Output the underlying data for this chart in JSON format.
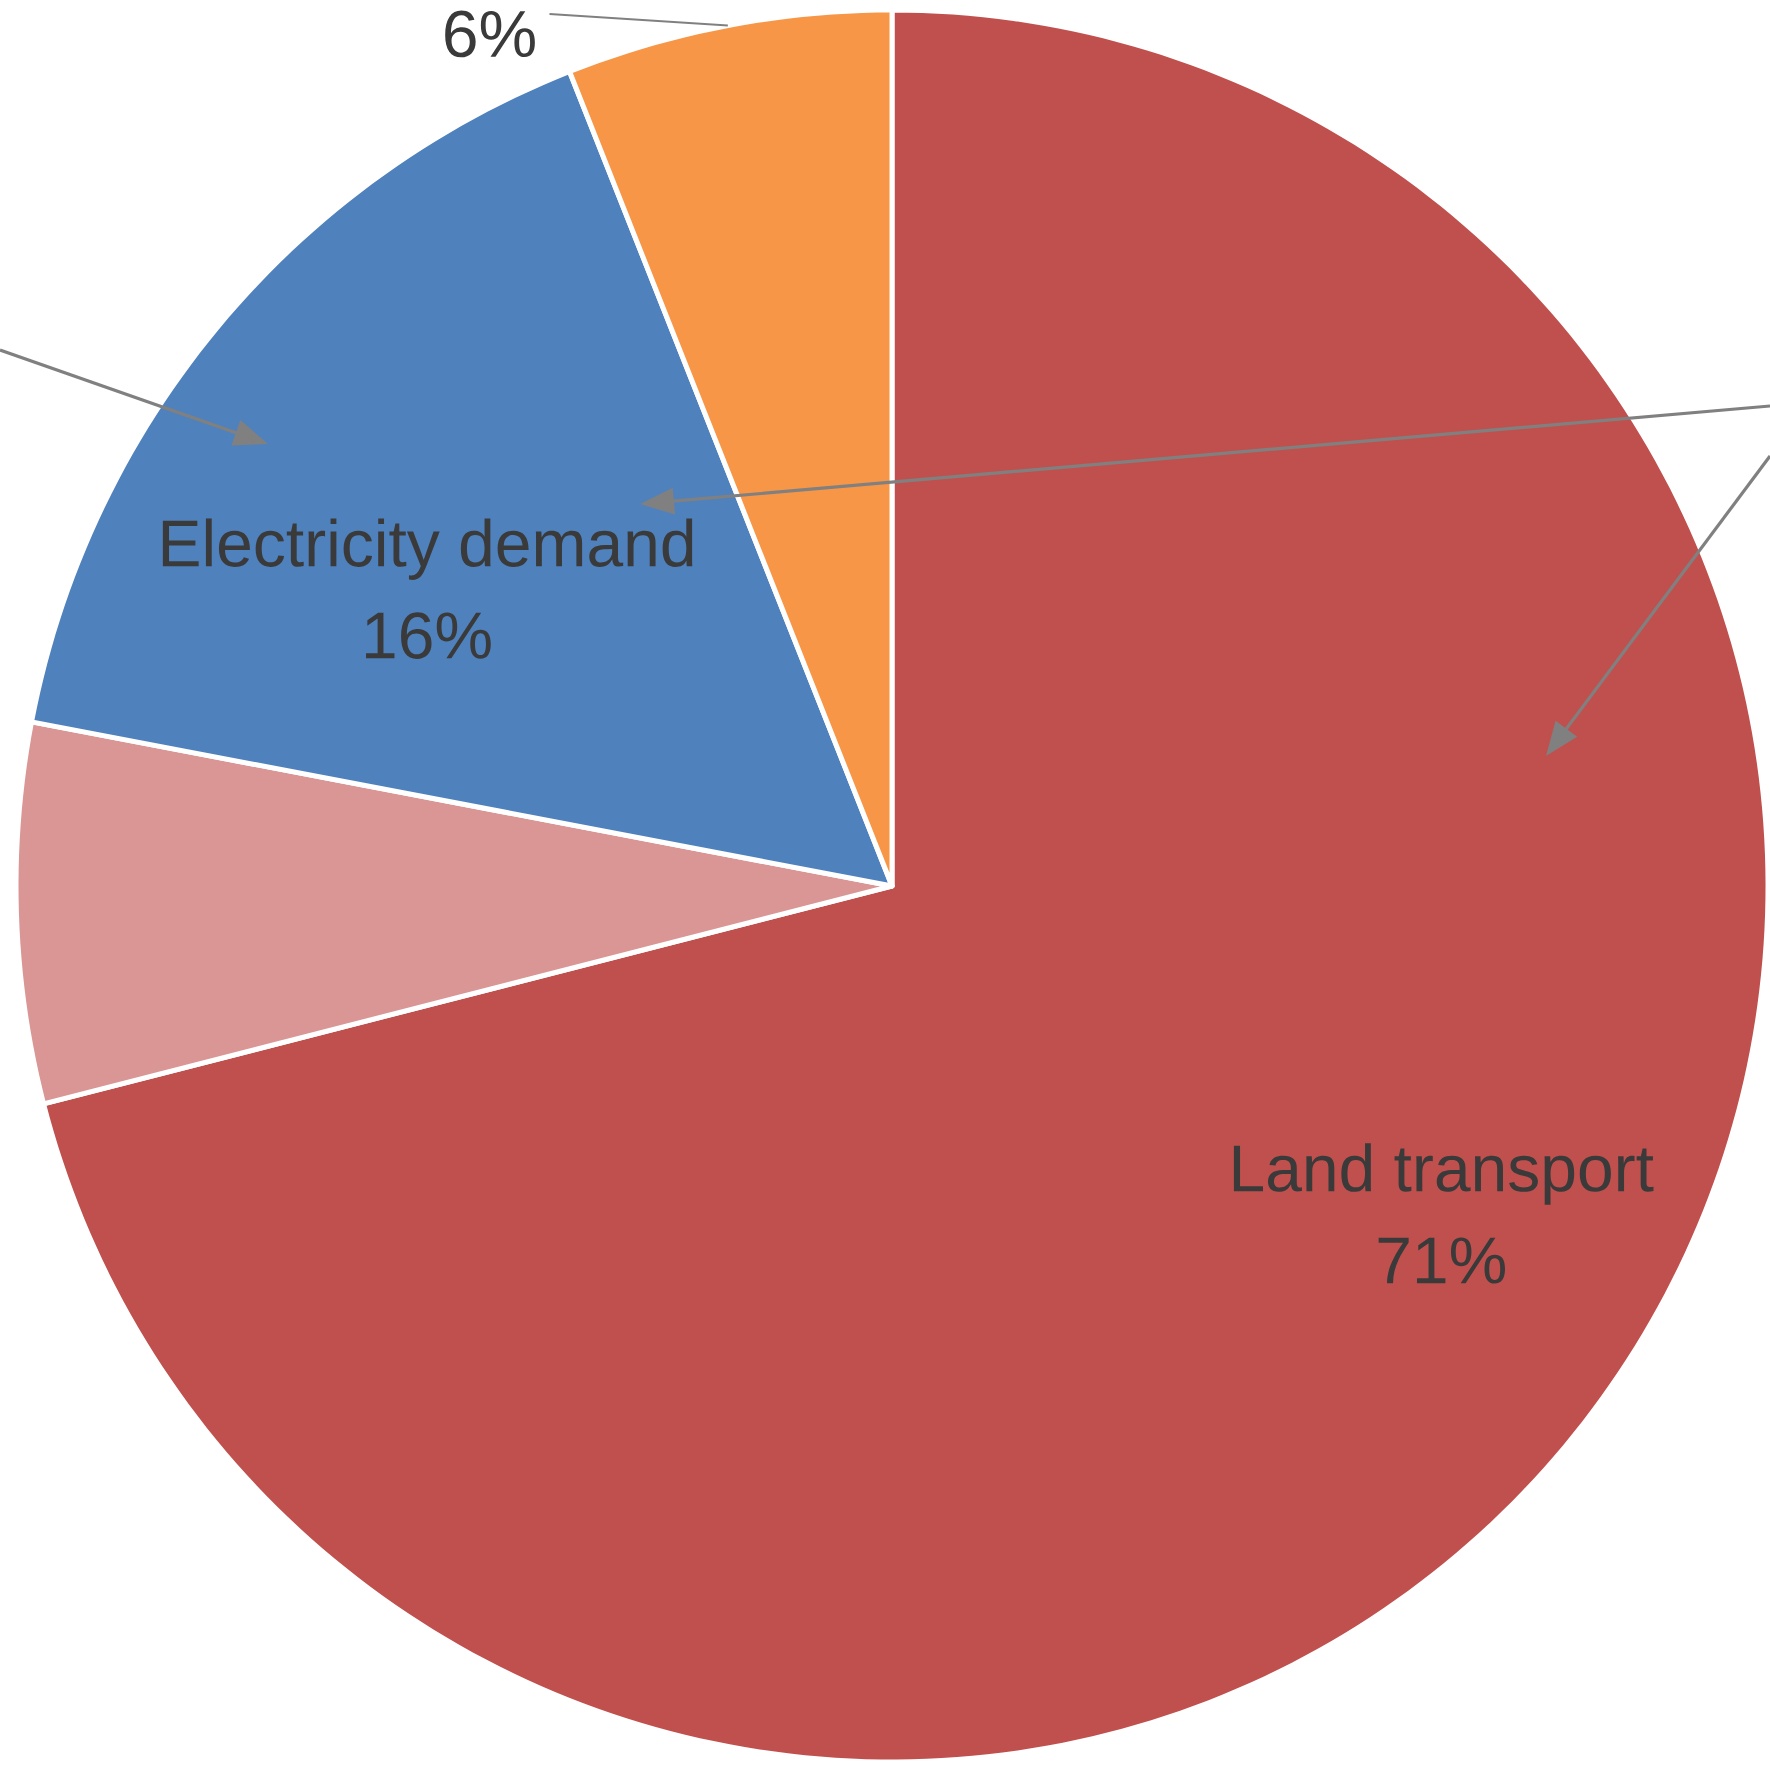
{
  "chart_data": {
    "type": "pie",
    "categories": [
      "Land transport",
      null,
      "Electricity demand",
      null
    ],
    "values": [
      71,
      7,
      16,
      6
    ],
    "colors": [
      "#c0504d",
      "#d99694",
      "#4f81bd",
      "#f79646"
    ],
    "value_labels": [
      "71%",
      null,
      "16%",
      "6%"
    ]
  }
}
